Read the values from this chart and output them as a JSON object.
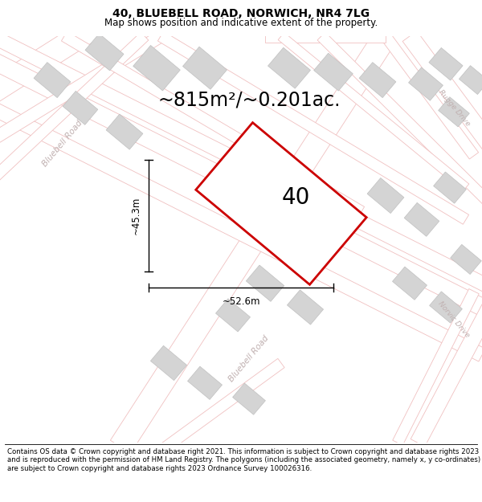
{
  "title": "40, BLUEBELL ROAD, NORWICH, NR4 7LG",
  "subtitle": "Map shows position and indicative extent of the property.",
  "area_text": "~815m²/~0.201ac.",
  "number_label": "40",
  "dim_width": "~52.6m",
  "dim_height": "~45.3m",
  "footer": "Contains OS data © Crown copyright and database right 2021. This information is subject to Crown copyright and database rights 2023 and is reproduced with the permission of HM Land Registry. The polygons (including the associated geometry, namely x, y co-ordinates) are subject to Crown copyright and database rights 2023 Ordnance Survey 100026316.",
  "bg_color": "#f7f3f3",
  "road_fill": "#f7f3f3",
  "road_edge_color": "#f0c0c0",
  "building_color": "#d8d8d8",
  "building_edge": "#c8c8c8",
  "property_fill": "#ffffff",
  "property_edge": "#cc0000",
  "road_label_color": "#c0b0b0",
  "title_fontsize": 10,
  "subtitle_fontsize": 8.5,
  "area_fontsize": 17,
  "number_fontsize": 20,
  "dim_fontsize": 8.5,
  "footer_fontsize": 6.2
}
